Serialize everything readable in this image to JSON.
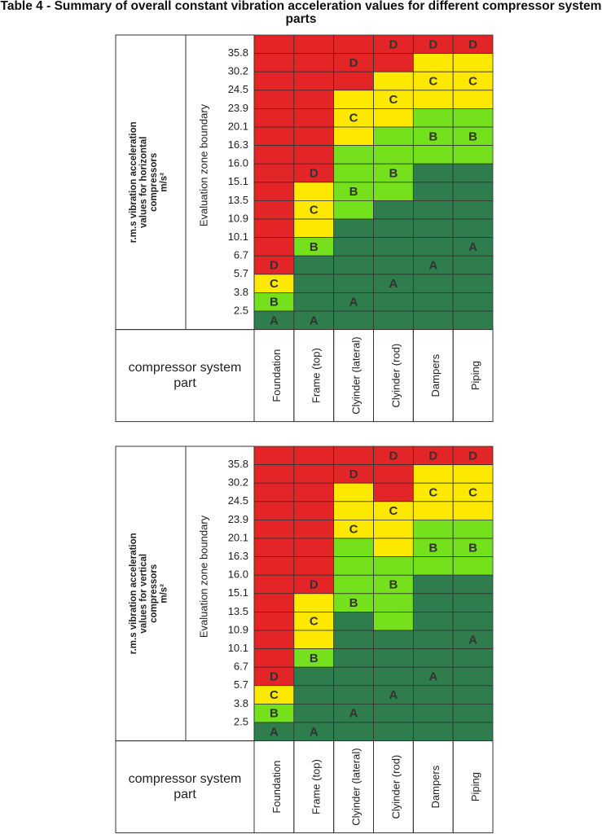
{
  "title": "Table 4 - Summary of overall constant vibration acceleration values for different compressor system parts",
  "zone_colors": {
    "A": "#2f7c4c",
    "B": "#74e11c",
    "C": "#fde800",
    "D": "#e42527"
  },
  "tables": [
    {
      "side_label": [
        "r.m.s vibration acceleration",
        "values for horizontal",
        "compressors",
        "m/s²"
      ],
      "boundary_label": "Evaluation zone boundary",
      "boundaries": [
        "35.8",
        "30.2",
        "24.5",
        "23.9",
        "20.1",
        "16.3",
        "16.0",
        "15.1",
        "13.5",
        "10.9",
        "10.1",
        "6.7",
        "5.7",
        "3.8",
        "2.5"
      ],
      "part_label": "compressor system part",
      "columns": [
        {
          "name": "Foundation",
          "cells": [
            {
              "zone": "D"
            },
            {
              "zone": "D"
            },
            {
              "zone": "D"
            },
            {
              "zone": "D"
            },
            {
              "zone": "D"
            },
            {
              "zone": "D"
            },
            {
              "zone": "D"
            },
            {
              "zone": "D"
            },
            {
              "zone": "D"
            },
            {
              "zone": "D"
            },
            {
              "zone": "D"
            },
            {
              "zone": "D"
            },
            {
              "zone": "D",
              "label": "D"
            },
            {
              "zone": "C",
              "label": "C"
            },
            {
              "zone": "B",
              "label": "B"
            },
            {
              "zone": "A",
              "label": "A"
            }
          ]
        },
        {
          "name": "Frame (top)",
          "cells": [
            {
              "zone": "D"
            },
            {
              "zone": "D"
            },
            {
              "zone": "D"
            },
            {
              "zone": "D"
            },
            {
              "zone": "D"
            },
            {
              "zone": "D"
            },
            {
              "zone": "D"
            },
            {
              "zone": "D",
              "label": "D"
            },
            {
              "zone": "C"
            },
            {
              "zone": "C",
              "label": "C"
            },
            {
              "zone": "C"
            },
            {
              "zone": "B",
              "label": "B"
            },
            {
              "zone": "A"
            },
            {
              "zone": "A"
            },
            {
              "zone": "A"
            },
            {
              "zone": "A",
              "label": "A"
            }
          ]
        },
        {
          "name": "Clyinder (lateral)",
          "cells": [
            {
              "zone": "D"
            },
            {
              "zone": "D",
              "label": "D"
            },
            {
              "zone": "D"
            },
            {
              "zone": "C"
            },
            {
              "zone": "C",
              "label": "C"
            },
            {
              "zone": "C"
            },
            {
              "zone": "B"
            },
            {
              "zone": "B"
            },
            {
              "zone": "B",
              "label": "B"
            },
            {
              "zone": "B"
            },
            {
              "zone": "A"
            },
            {
              "zone": "A"
            },
            {
              "zone": "A"
            },
            {
              "zone": "A"
            },
            {
              "zone": "A",
              "label": "A"
            },
            {
              "zone": "A"
            }
          ]
        },
        {
          "name": "Clyinder (rod)",
          "cells": [
            {
              "zone": "D",
              "label": "D"
            },
            {
              "zone": "D"
            },
            {
              "zone": "C"
            },
            {
              "zone": "C",
              "label": "C"
            },
            {
              "zone": "C"
            },
            {
              "zone": "B"
            },
            {
              "zone": "B"
            },
            {
              "zone": "B",
              "label": "B"
            },
            {
              "zone": "B"
            },
            {
              "zone": "A"
            },
            {
              "zone": "A"
            },
            {
              "zone": "A"
            },
            {
              "zone": "A"
            },
            {
              "zone": "A",
              "label": "A"
            },
            {
              "zone": "A"
            },
            {
              "zone": "A"
            }
          ]
        },
        {
          "name": "Dampers",
          "cells": [
            {
              "zone": "D",
              "label": "D"
            },
            {
              "zone": "C"
            },
            {
              "zone": "C",
              "label": "C"
            },
            {
              "zone": "C"
            },
            {
              "zone": "B"
            },
            {
              "zone": "B",
              "label": "B"
            },
            {
              "zone": "B"
            },
            {
              "zone": "A"
            },
            {
              "zone": "A"
            },
            {
              "zone": "A"
            },
            {
              "zone": "A"
            },
            {
              "zone": "A"
            },
            {
              "zone": "A",
              "label": "A"
            },
            {
              "zone": "A"
            },
            {
              "zone": "A"
            },
            {
              "zone": "A"
            }
          ]
        },
        {
          "name": "Piping",
          "cells": [
            {
              "zone": "D",
              "label": "D"
            },
            {
              "zone": "C"
            },
            {
              "zone": "C",
              "label": "C"
            },
            {
              "zone": "C"
            },
            {
              "zone": "B"
            },
            {
              "zone": "B",
              "label": "B"
            },
            {
              "zone": "B"
            },
            {
              "zone": "A"
            },
            {
              "zone": "A"
            },
            {
              "zone": "A"
            },
            {
              "zone": "A"
            },
            {
              "zone": "A",
              "label": "A"
            },
            {
              "zone": "A"
            },
            {
              "zone": "A"
            },
            {
              "zone": "A"
            },
            {
              "zone": "A"
            }
          ]
        }
      ]
    },
    {
      "side_label": [
        "r.m.s vibration acceleration",
        "values for vertical",
        "compressors",
        "m/s²"
      ],
      "boundary_label": "Evaluation zone boundary",
      "boundaries": [
        "35.8",
        "30.2",
        "24.5",
        "23.9",
        "20.1",
        "16.3",
        "16.0",
        "15.1",
        "13.5",
        "10.9",
        "10.1",
        "6.7",
        "5.7",
        "3.8",
        "2.5"
      ],
      "part_label": "compressor system part",
      "columns": [
        {
          "name": "Foundation",
          "cells": [
            {
              "zone": "D"
            },
            {
              "zone": "D"
            },
            {
              "zone": "D"
            },
            {
              "zone": "D"
            },
            {
              "zone": "D"
            },
            {
              "zone": "D"
            },
            {
              "zone": "D"
            },
            {
              "zone": "D"
            },
            {
              "zone": "D"
            },
            {
              "zone": "D"
            },
            {
              "zone": "D"
            },
            {
              "zone": "D"
            },
            {
              "zone": "D",
              "label": "D"
            },
            {
              "zone": "C",
              "label": "C"
            },
            {
              "zone": "B",
              "label": "B"
            },
            {
              "zone": "A",
              "label": "A"
            }
          ]
        },
        {
          "name": "Frame (top)",
          "cells": [
            {
              "zone": "D"
            },
            {
              "zone": "D"
            },
            {
              "zone": "D"
            },
            {
              "zone": "D"
            },
            {
              "zone": "D"
            },
            {
              "zone": "D"
            },
            {
              "zone": "D"
            },
            {
              "zone": "D",
              "label": "D"
            },
            {
              "zone": "C"
            },
            {
              "zone": "C",
              "label": "C"
            },
            {
              "zone": "C"
            },
            {
              "zone": "B",
              "label": "B"
            },
            {
              "zone": "A"
            },
            {
              "zone": "A"
            },
            {
              "zone": "A"
            },
            {
              "zone": "A",
              "label": "A"
            }
          ]
        },
        {
          "name": "Clyinder (lateral)",
          "cells": [
            {
              "zone": "D"
            },
            {
              "zone": "D",
              "label": "D"
            },
            {
              "zone": "C"
            },
            {
              "zone": "C"
            },
            {
              "zone": "C",
              "label": "C"
            },
            {
              "zone": "B"
            },
            {
              "zone": "B"
            },
            {
              "zone": "B"
            },
            {
              "zone": "B",
              "label": "B"
            },
            {
              "zone": "A"
            },
            {
              "zone": "A"
            },
            {
              "zone": "A"
            },
            {
              "zone": "A"
            },
            {
              "zone": "A"
            },
            {
              "zone": "A",
              "label": "A"
            },
            {
              "zone": "A"
            }
          ]
        },
        {
          "name": "Clyinder (rod)",
          "cells": [
            {
              "zone": "D",
              "label": "D"
            },
            {
              "zone": "D"
            },
            {
              "zone": "D"
            },
            {
              "zone": "C",
              "label": "C"
            },
            {
              "zone": "C"
            },
            {
              "zone": "C"
            },
            {
              "zone": "B"
            },
            {
              "zone": "B",
              "label": "B"
            },
            {
              "zone": "B"
            },
            {
              "zone": "B"
            },
            {
              "zone": "A"
            },
            {
              "zone": "A"
            },
            {
              "zone": "A"
            },
            {
              "zone": "A",
              "label": "A"
            },
            {
              "zone": "A"
            },
            {
              "zone": "A"
            }
          ]
        },
        {
          "name": "Dampers",
          "cells": [
            {
              "zone": "D",
              "label": "D"
            },
            {
              "zone": "C"
            },
            {
              "zone": "C",
              "label": "C"
            },
            {
              "zone": "C"
            },
            {
              "zone": "B"
            },
            {
              "zone": "B",
              "label": "B"
            },
            {
              "zone": "B"
            },
            {
              "zone": "A"
            },
            {
              "zone": "A"
            },
            {
              "zone": "A"
            },
            {
              "zone": "A"
            },
            {
              "zone": "A"
            },
            {
              "zone": "A",
              "label": "A"
            },
            {
              "zone": "A"
            },
            {
              "zone": "A"
            },
            {
              "zone": "A"
            }
          ]
        },
        {
          "name": "Piping",
          "cells": [
            {
              "zone": "D",
              "label": "D"
            },
            {
              "zone": "C"
            },
            {
              "zone": "C",
              "label": "C"
            },
            {
              "zone": "C"
            },
            {
              "zone": "B"
            },
            {
              "zone": "B",
              "label": "B"
            },
            {
              "zone": "B"
            },
            {
              "zone": "A"
            },
            {
              "zone": "A"
            },
            {
              "zone": "A"
            },
            {
              "zone": "A",
              "label": "A"
            },
            {
              "zone": "A"
            },
            {
              "zone": "A"
            },
            {
              "zone": "A"
            },
            {
              "zone": "A"
            },
            {
              "zone": "A"
            }
          ]
        }
      ]
    }
  ]
}
